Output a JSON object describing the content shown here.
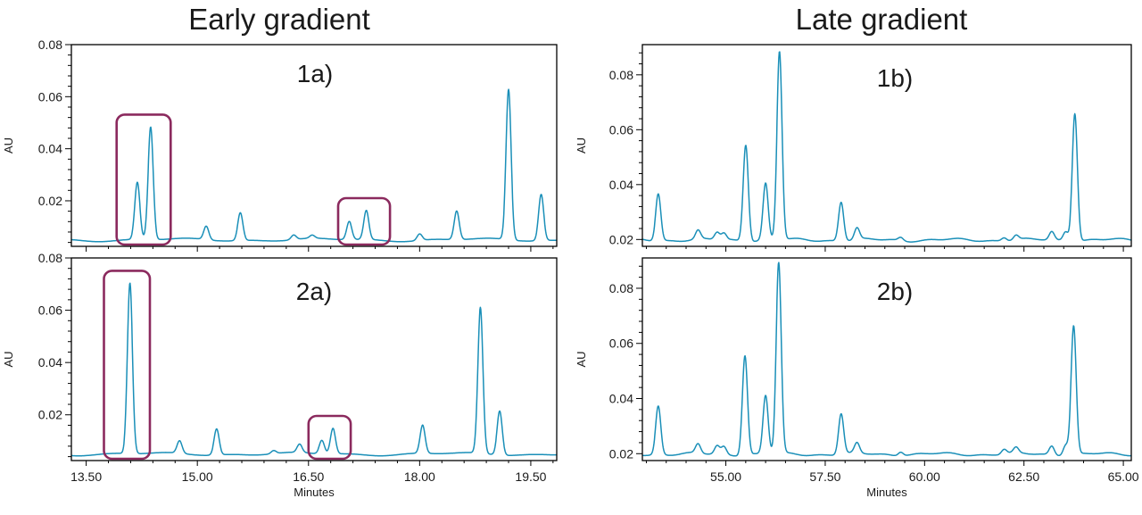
{
  "titles": {
    "early": "Early gradient",
    "late": "Late gradient"
  },
  "colors": {
    "trace": "#1a8fb8",
    "highlight": "#8b2a5e",
    "axis": "#000000"
  },
  "chart_data": [
    {
      "id": "1a",
      "type": "line",
      "panel_label": "1a)",
      "column": "Early gradient",
      "xlabel": "",
      "ylabel": "AU",
      "xlim": [
        13.3,
        19.85
      ],
      "ylim": [
        0.0025,
        0.08
      ],
      "yticks": [
        0.02,
        0.04,
        0.06,
        0.08
      ],
      "ytick_labels": [
        "0.02",
        "0.04",
        "0.06",
        "0.08"
      ],
      "xticks": [
        13.5,
        15.0,
        16.5,
        18.0,
        19.5
      ],
      "show_xtick_labels": false,
      "grid": false,
      "baseline": 0.005,
      "peaks": [
        {
          "x": 14.19,
          "y": 0.027
        },
        {
          "x": 14.37,
          "y": 0.0483
        },
        {
          "x": 15.12,
          "y": 0.0102
        },
        {
          "x": 15.58,
          "y": 0.0157
        },
        {
          "x": 16.3,
          "y": 0.0068
        },
        {
          "x": 16.55,
          "y": 0.0062
        },
        {
          "x": 17.05,
          "y": 0.012
        },
        {
          "x": 17.28,
          "y": 0.0162
        },
        {
          "x": 18.0,
          "y": 0.0075
        },
        {
          "x": 18.5,
          "y": 0.016
        },
        {
          "x": 19.2,
          "y": 0.0628
        },
        {
          "x": 19.64,
          "y": 0.0228
        }
      ],
      "highlights": [
        {
          "x_start": 13.91,
          "x_end": 14.64
        },
        {
          "x_start": 16.9,
          "x_end": 17.6
        }
      ]
    },
    {
      "id": "2a",
      "type": "line",
      "panel_label": "2a)",
      "column": "Early gradient",
      "xlabel": "Minutes",
      "ylabel": "AU",
      "xlim": [
        13.3,
        19.85
      ],
      "ylim": [
        0.0025,
        0.08
      ],
      "yticks": [
        0.02,
        0.04,
        0.06,
        0.08
      ],
      "ytick_labels": [
        "0.02",
        "0.04",
        "0.06",
        "0.08"
      ],
      "xticks": [
        13.5,
        15.0,
        16.5,
        18.0,
        19.5
      ],
      "xtick_labels": [
        "13.50",
        "15.00",
        "16.50",
        "18.00",
        "19.50"
      ],
      "grid": false,
      "baseline": 0.005,
      "peaks": [
        {
          "x": 14.09,
          "y": 0.0703
        },
        {
          "x": 14.76,
          "y": 0.0098
        },
        {
          "x": 15.26,
          "y": 0.015
        },
        {
          "x": 16.03,
          "y": 0.0062
        },
        {
          "x": 16.38,
          "y": 0.0082
        },
        {
          "x": 16.68,
          "y": 0.0102
        },
        {
          "x": 16.83,
          "y": 0.0148
        },
        {
          "x": 18.04,
          "y": 0.0158
        },
        {
          "x": 18.82,
          "y": 0.0608
        },
        {
          "x": 19.08,
          "y": 0.0219
        }
      ],
      "highlights": [
        {
          "x_start": 13.74,
          "x_end": 14.36
        },
        {
          "x_start": 16.5,
          "x_end": 17.07
        }
      ]
    },
    {
      "id": "1b",
      "type": "line",
      "panel_label": "1b)",
      "column": "Late gradient",
      "xlabel": "",
      "ylabel": "AU",
      "xlim": [
        52.9,
        65.2
      ],
      "ylim": [
        0.0175,
        0.091
      ],
      "yticks": [
        0.02,
        0.04,
        0.06,
        0.08
      ],
      "ytick_labels": [
        "0.02",
        "0.04",
        "0.06",
        "0.08"
      ],
      "xticks": [
        55.0,
        57.5,
        60.0,
        62.5,
        65.0
      ],
      "show_xtick_labels": false,
      "grid": false,
      "baseline": 0.0198,
      "peaks": [
        {
          "x": 53.3,
          "y": 0.037
        },
        {
          "x": 54.3,
          "y": 0.023
        },
        {
          "x": 54.78,
          "y": 0.0225
        },
        {
          "x": 54.95,
          "y": 0.0222
        },
        {
          "x": 55.5,
          "y": 0.055
        },
        {
          "x": 56.0,
          "y": 0.0405
        },
        {
          "x": 56.35,
          "y": 0.0885
        },
        {
          "x": 57.9,
          "y": 0.034
        },
        {
          "x": 58.3,
          "y": 0.024
        },
        {
          "x": 59.4,
          "y": 0.021
        },
        {
          "x": 62.0,
          "y": 0.021
        },
        {
          "x": 62.3,
          "y": 0.0215
        },
        {
          "x": 63.2,
          "y": 0.0228
        },
        {
          "x": 63.55,
          "y": 0.0232
        },
        {
          "x": 63.78,
          "y": 0.0665
        }
      ]
    },
    {
      "id": "2b",
      "type": "line",
      "panel_label": "2b)",
      "column": "Late gradient",
      "xlabel": "Minutes",
      "ylabel": "AU",
      "xlim": [
        52.9,
        65.2
      ],
      "ylim": [
        0.0175,
        0.091
      ],
      "yticks": [
        0.02,
        0.04,
        0.06,
        0.08
      ],
      "ytick_labels": [
        "0.02",
        "0.04",
        "0.06",
        "0.08"
      ],
      "xticks": [
        55.0,
        57.5,
        60.0,
        62.5,
        65.0
      ],
      "xtick_labels": [
        "55.00",
        "57.50",
        "60.00",
        "62.50",
        "65.00"
      ],
      "grid": false,
      "baseline": 0.0198,
      "peaks": [
        {
          "x": 53.3,
          "y": 0.0375
        },
        {
          "x": 54.3,
          "y": 0.0232
        },
        {
          "x": 54.78,
          "y": 0.0228
        },
        {
          "x": 54.95,
          "y": 0.0226
        },
        {
          "x": 55.48,
          "y": 0.056
        },
        {
          "x": 56.0,
          "y": 0.041
        },
        {
          "x": 56.33,
          "y": 0.089
        },
        {
          "x": 57.9,
          "y": 0.0345
        },
        {
          "x": 58.3,
          "y": 0.0235
        },
        {
          "x": 59.4,
          "y": 0.0212
        },
        {
          "x": 62.0,
          "y": 0.0215
        },
        {
          "x": 62.3,
          "y": 0.0218
        },
        {
          "x": 63.2,
          "y": 0.023
        },
        {
          "x": 63.55,
          "y": 0.0236
        },
        {
          "x": 63.75,
          "y": 0.0665
        }
      ]
    }
  ]
}
